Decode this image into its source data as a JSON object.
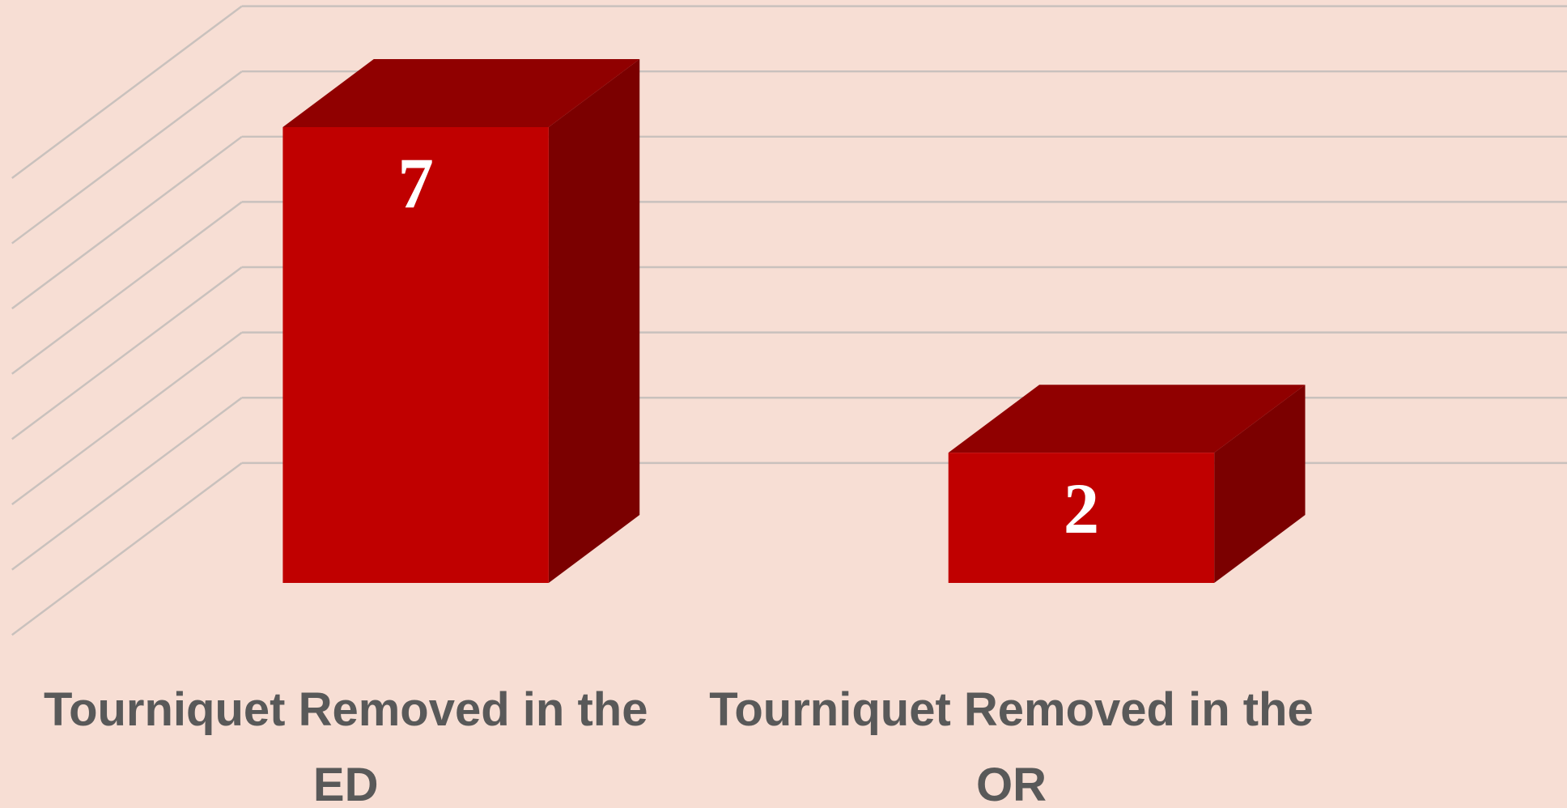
{
  "chart_data": {
    "type": "bar3d",
    "categories": [
      "Tourniquet Removed in the ED",
      "Tourniquet Removed in the OR"
    ],
    "values": [
      7,
      2
    ],
    "color": "#c00000",
    "ylim": [
      0,
      7
    ],
    "yticks": [
      0,
      1,
      2,
      3,
      4,
      5,
      6,
      7
    ],
    "grid": true
  }
}
